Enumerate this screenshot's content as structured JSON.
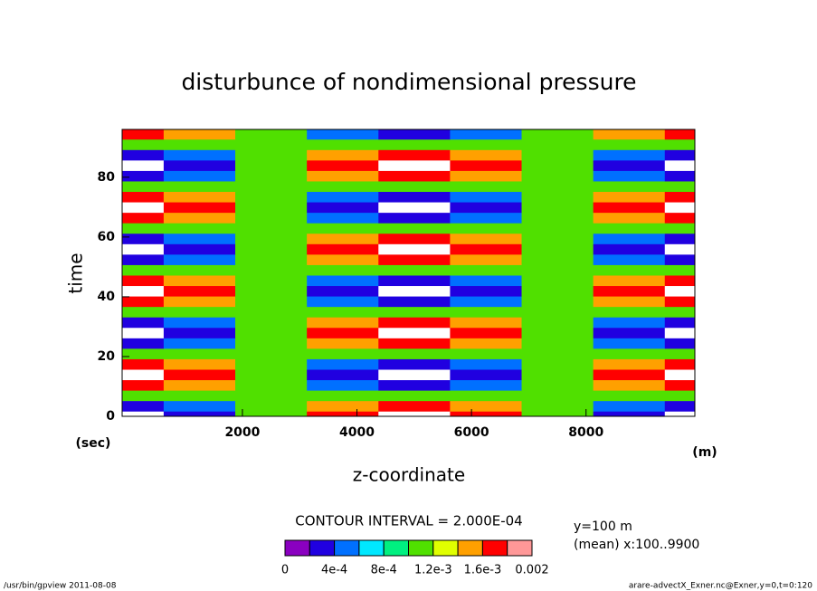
{
  "chart_data": {
    "type": "contour",
    "title": "disturbunce of nondimensional pressure",
    "xlabel": "z-coordinate",
    "xunit": "(m)",
    "ylabel": "time",
    "yunit": "(sec)",
    "xlim": [
      -100,
      9900
    ],
    "xticks": [
      2000,
      4000,
      6000,
      8000
    ],
    "ylim": [
      0,
      96
    ],
    "yticks": [
      0,
      20,
      40,
      60,
      80
    ],
    "x": [
      0,
      1250,
      2500,
      3750,
      5000,
      6250,
      7500,
      8750,
      10000
    ],
    "y": [
      0,
      3.5,
      7,
      10.5,
      14,
      17.5,
      21,
      24.5,
      28,
      31.5,
      35,
      38.5,
      42,
      45.5,
      49,
      52.5,
      56,
      59.5,
      63,
      66.5,
      70,
      73.5,
      77,
      80.5,
      84,
      87.5,
      91,
      94.5
    ],
    "z": [
      [
        -0.0001,
        0.00022,
        0.001,
        0.00178,
        0.0021,
        0.00178,
        0.001,
        0.00022,
        -0.0001
      ],
      [
        0.00022,
        0.00045,
        0.001,
        0.00155,
        0.00178,
        0.00155,
        0.001,
        0.00045,
        0.00022
      ],
      [
        0.001,
        0.001,
        0.001,
        0.001,
        0.001,
        0.001,
        0.001,
        0.001,
        0.001
      ],
      [
        0.00178,
        0.00155,
        0.001,
        0.00045,
        0.00022,
        0.00045,
        0.001,
        0.00155,
        0.00178
      ],
      [
        0.0021,
        0.00178,
        0.001,
        0.00022,
        -0.0001,
        0.00022,
        0.001,
        0.00178,
        0.0021
      ],
      [
        0.00178,
        0.00155,
        0.001,
        0.00045,
        0.00022,
        0.00045,
        0.001,
        0.00155,
        0.00178
      ],
      [
        0.001,
        0.001,
        0.001,
        0.001,
        0.001,
        0.001,
        0.001,
        0.001,
        0.001
      ],
      [
        0.00022,
        0.00045,
        0.001,
        0.00155,
        0.00178,
        0.00155,
        0.001,
        0.00045,
        0.00022
      ],
      [
        -0.0001,
        0.00022,
        0.001,
        0.00178,
        0.0021,
        0.00178,
        0.001,
        0.00022,
        -0.0001
      ],
      [
        0.00022,
        0.00045,
        0.001,
        0.00155,
        0.00178,
        0.00155,
        0.001,
        0.00045,
        0.00022
      ],
      [
        0.001,
        0.001,
        0.001,
        0.001,
        0.001,
        0.001,
        0.001,
        0.001,
        0.001
      ],
      [
        0.00178,
        0.00155,
        0.001,
        0.00045,
        0.00022,
        0.00045,
        0.001,
        0.00155,
        0.00178
      ],
      [
        0.0021,
        0.00178,
        0.001,
        0.00022,
        -0.0001,
        0.00022,
        0.001,
        0.00178,
        0.0021
      ],
      [
        0.00178,
        0.00155,
        0.001,
        0.00045,
        0.00022,
        0.00045,
        0.001,
        0.00155,
        0.00178
      ],
      [
        0.001,
        0.001,
        0.001,
        0.001,
        0.001,
        0.001,
        0.001,
        0.001,
        0.001
      ],
      [
        0.00022,
        0.00045,
        0.001,
        0.00155,
        0.00178,
        0.00155,
        0.001,
        0.00045,
        0.00022
      ],
      [
        -0.0001,
        0.00022,
        0.001,
        0.00178,
        0.0021,
        0.00178,
        0.001,
        0.00022,
        -0.0001
      ],
      [
        0.00022,
        0.00045,
        0.001,
        0.00155,
        0.00178,
        0.00155,
        0.001,
        0.00045,
        0.00022
      ],
      [
        0.001,
        0.001,
        0.001,
        0.001,
        0.001,
        0.001,
        0.001,
        0.001,
        0.001
      ],
      [
        0.00178,
        0.00155,
        0.001,
        0.00045,
        0.00022,
        0.00045,
        0.001,
        0.00155,
        0.00178
      ],
      [
        0.0021,
        0.00178,
        0.001,
        0.00022,
        -0.0001,
        0.00022,
        0.001,
        0.00178,
        0.0021
      ],
      [
        0.00178,
        0.00155,
        0.001,
        0.00045,
        0.00022,
        0.00045,
        0.001,
        0.00155,
        0.00178
      ],
      [
        0.001,
        0.001,
        0.001,
        0.001,
        0.001,
        0.001,
        0.001,
        0.001,
        0.001
      ],
      [
        0.00022,
        0.00045,
        0.001,
        0.00155,
        0.00178,
        0.00155,
        0.001,
        0.00045,
        0.00022
      ],
      [
        -0.0001,
        0.00022,
        0.001,
        0.00178,
        0.0021,
        0.00178,
        0.001,
        0.00022,
        -0.0001
      ],
      [
        0.00022,
        0.00045,
        0.001,
        0.00155,
        0.00178,
        0.00155,
        0.001,
        0.00045,
        0.00022
      ],
      [
        0.001,
        0.001,
        0.001,
        0.001,
        0.001,
        0.001,
        0.001,
        0.001,
        0.001
      ],
      [
        0.00178,
        0.00155,
        0.001,
        0.00045,
        0.00022,
        0.00045,
        0.001,
        0.00155,
        0.00178
      ]
    ],
    "levels": [
      0,
      0.0002,
      0.0004,
      0.0006,
      0.0008,
      0.001,
      0.0012,
      0.0014,
      0.0016,
      0.0018,
      0.002
    ],
    "colors": [
      "#8a00c0",
      "#2000e0",
      "#0070ff",
      "#00e8ff",
      "#00f080",
      "#50e000",
      "#e0ff00",
      "#ffa000",
      "#ff0000",
      "#ff9898"
    ],
    "outside_color": "#ffffff",
    "colorbar_ticks": [
      0,
      {
        "value": 0.0004,
        "label": "4e-4"
      },
      {
        "value": 0.0008,
        "label": "8e-4"
      },
      {
        "value": 0.0012,
        "label": "1.2e-3"
      },
      {
        "value": 0.0016,
        "label": "1.6e-3"
      },
      0.002
    ],
    "contour_interval": "CONTOUR INTERVAL = 2.000E-04",
    "notes": [
      "y=100 m",
      "(mean) x:100..9900"
    ],
    "footer_left": "/usr/bin/gpview  2011-08-08",
    "footer_right": "arare-advectX_Exner.nc@Exner,y=0,t=0:120"
  }
}
